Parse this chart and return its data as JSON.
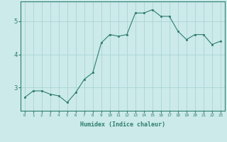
{
  "x": [
    0,
    1,
    2,
    3,
    4,
    5,
    6,
    7,
    8,
    9,
    10,
    11,
    12,
    13,
    14,
    15,
    16,
    17,
    18,
    19,
    20,
    21,
    22,
    23
  ],
  "y": [
    2.7,
    2.9,
    2.9,
    2.8,
    2.75,
    2.55,
    2.85,
    3.25,
    3.45,
    4.35,
    4.6,
    4.55,
    4.6,
    5.25,
    5.25,
    5.35,
    5.15,
    5.15,
    4.7,
    4.45,
    4.6,
    4.6,
    4.3,
    4.4
  ],
  "line_color": "#2e7d6e",
  "marker_color": "#2e7d6e",
  "bg_color": "#cceaea",
  "grid_color": "#aad4d4",
  "axis_color": "#2e7d6e",
  "tick_color": "#2e7d6e",
  "xlabel": "Humidex (Indice chaleur)",
  "ylim": [
    2.3,
    5.6
  ],
  "yticks": [
    3,
    4,
    5
  ]
}
